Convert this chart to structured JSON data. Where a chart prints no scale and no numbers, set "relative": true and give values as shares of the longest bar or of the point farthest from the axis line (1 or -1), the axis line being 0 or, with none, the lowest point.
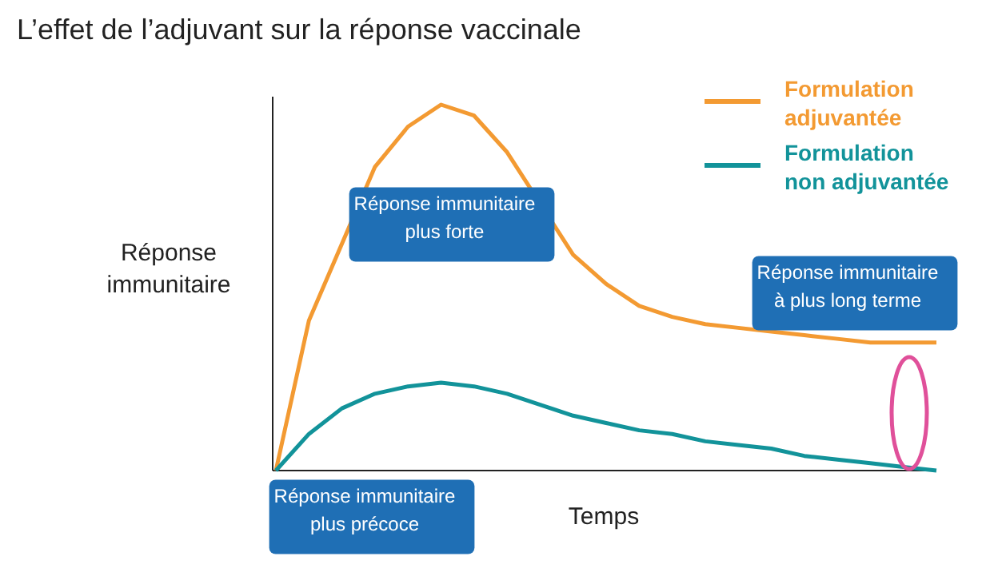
{
  "chart_data": {
    "type": "line",
    "title": "L’effet de l’adjuvant sur la réponse vaccinale",
    "xlabel": "Temps",
    "ylabel": "Réponse\nimmunitaire",
    "relative": true,
    "legend": "top right",
    "categories": [
      null,
      null,
      null,
      null,
      null,
      null,
      null,
      null,
      null,
      null,
      null,
      null,
      null,
      null,
      null,
      null,
      null,
      null,
      null,
      null,
      null
    ],
    "series": [
      {
        "name": "Formulation\nadjuvantée",
        "color": "#f39a32",
        "values": [
          0,
          0.41,
          null,
          0.83,
          0.94,
          1.0,
          0.97,
          0.87,
          null,
          0.59,
          0.51,
          0.45,
          0.42,
          0.4,
          0.39,
          0.38,
          0.37,
          0.36,
          0.35,
          0.35,
          0.35
        ]
      },
      {
        "name": "Formulation\nnon adjuvantée",
        "color": "#12939a",
        "values": [
          0,
          0.1,
          0.17,
          0.21,
          0.23,
          0.24,
          0.23,
          0.21,
          0.18,
          0.15,
          0.13,
          0.11,
          0.1,
          0.08,
          0.07,
          0.06,
          0.04,
          0.03,
          0.02,
          0.01,
          0
        ]
      }
    ],
    "annotations": [
      "Réponse immunitaire\nplus forte",
      "Réponse immunitaire\nà plus long terme",
      "Réponse immunitaire\nplus précoce"
    ]
  }
}
